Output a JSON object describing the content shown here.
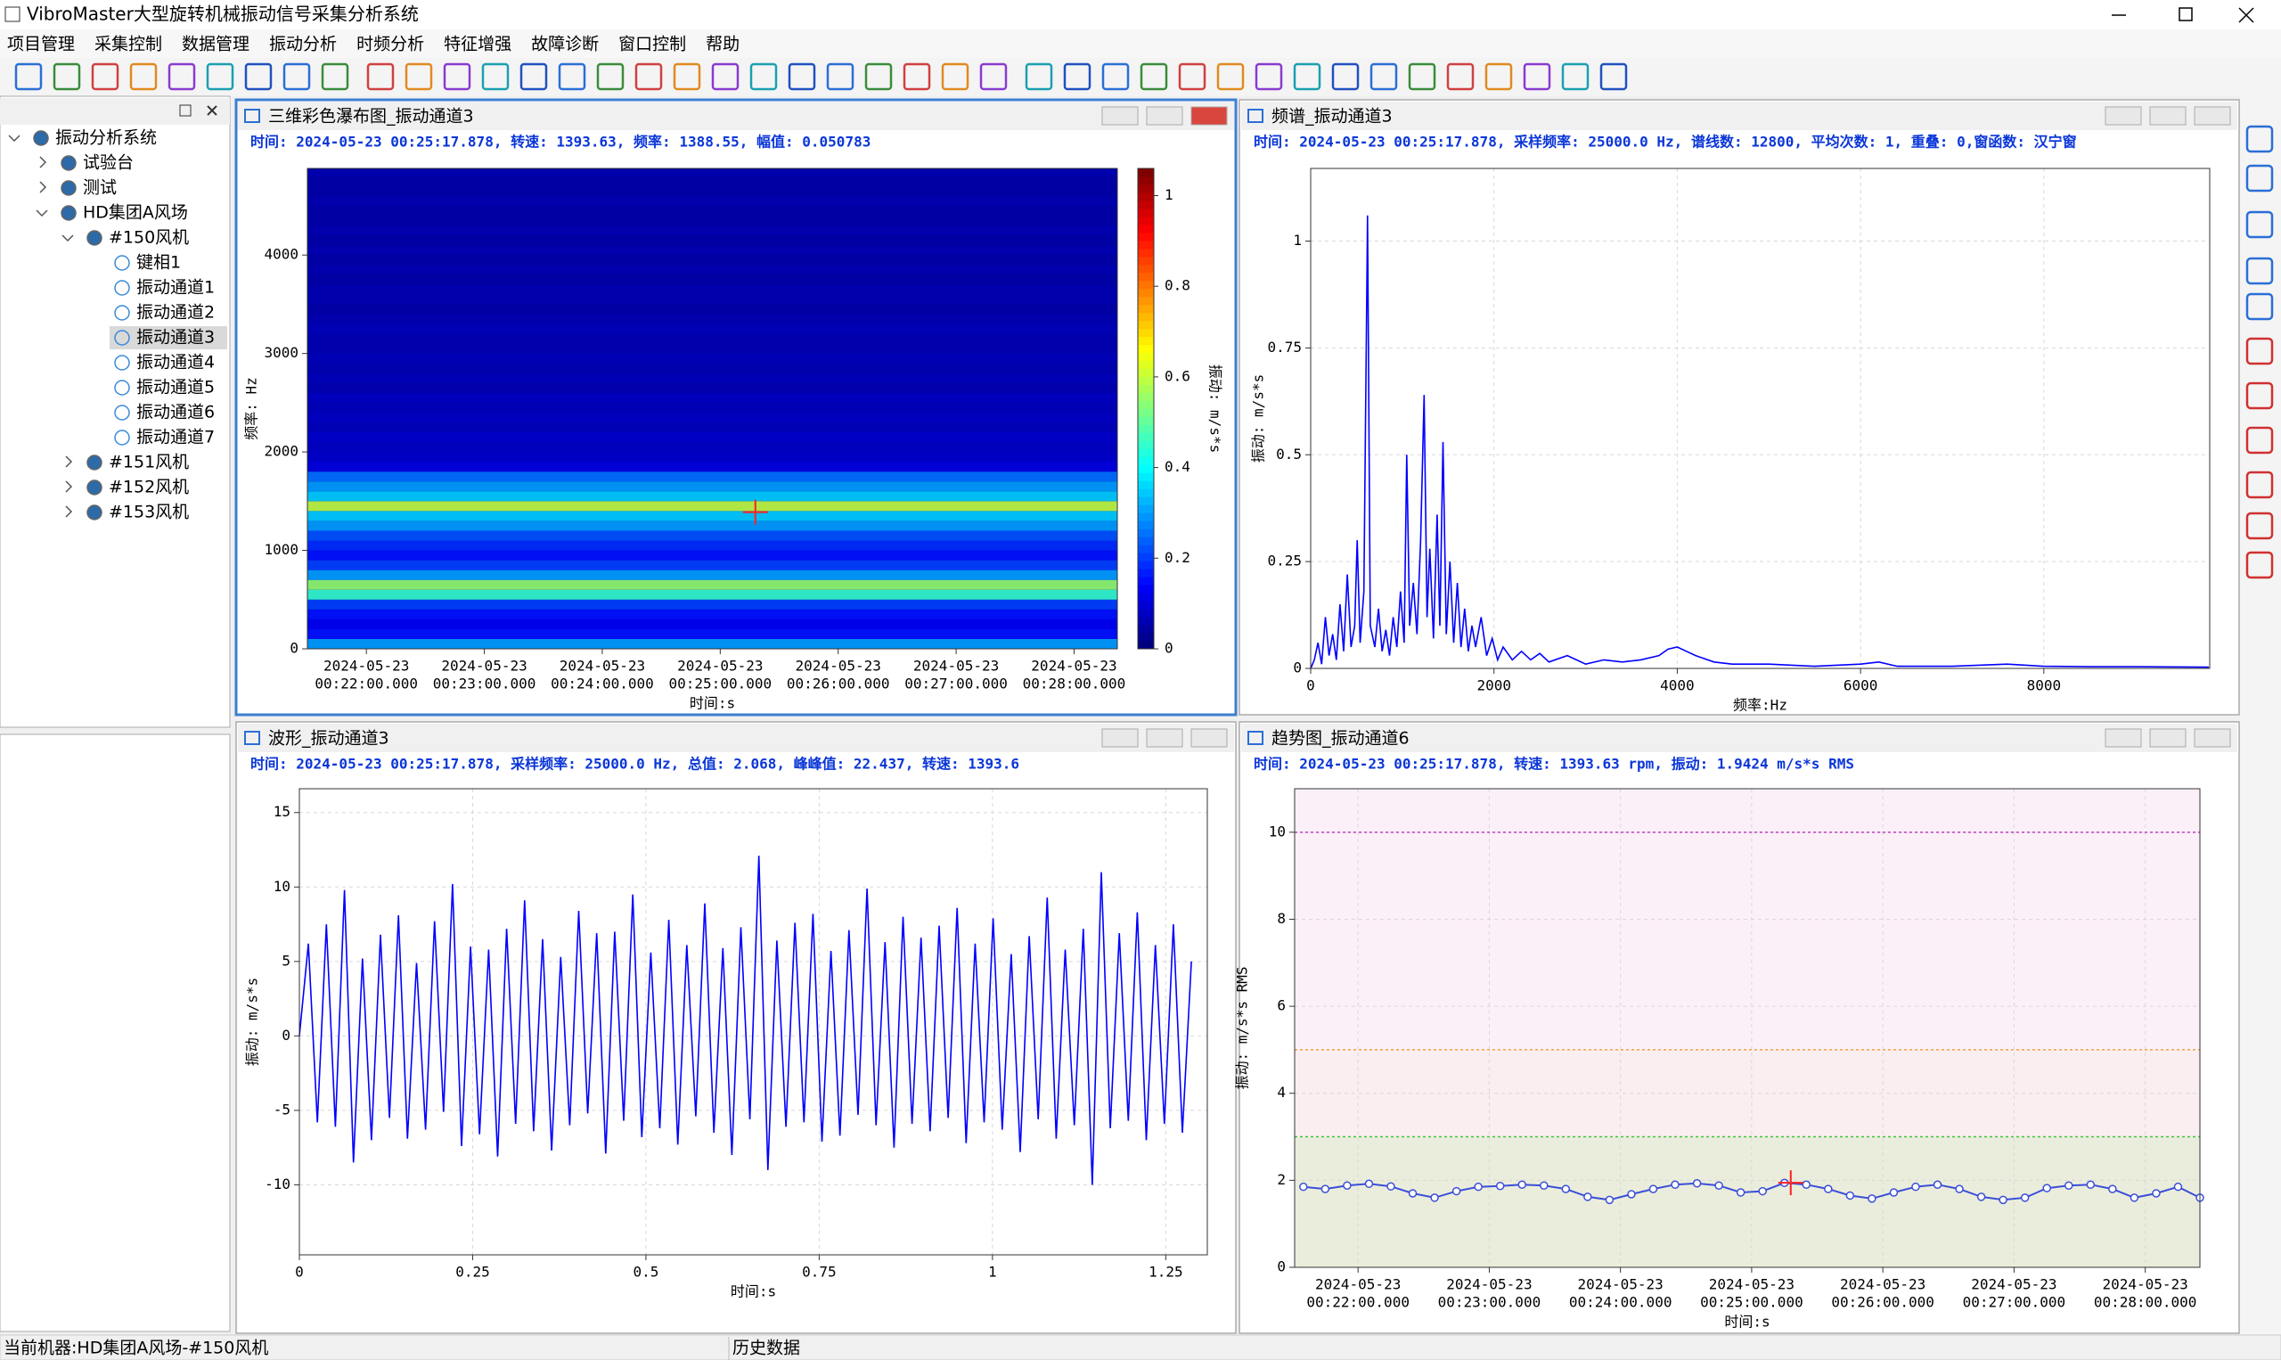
{
  "window_title": "VibroMaster大型旋转机械振动信号采集分析系统",
  "menu": [
    "项目管理",
    "采集控制",
    "数据管理",
    "振动分析",
    "时频分析",
    "特征增强",
    "故障诊断",
    "窗口控制",
    "帮助"
  ],
  "tree": [
    {
      "label": "振动分析系统",
      "level": 0,
      "expanded": true
    },
    {
      "label": "试验台",
      "level": 1,
      "expanded": false
    },
    {
      "label": "测试",
      "level": 1,
      "expanded": false
    },
    {
      "label": "HD集团A风场",
      "level": 1,
      "expanded": true
    },
    {
      "label": "#150风机",
      "level": 2,
      "expanded": true
    },
    {
      "label": "键相1",
      "level": 3
    },
    {
      "label": "振动通道1",
      "level": 3
    },
    {
      "label": "振动通道2",
      "level": 3
    },
    {
      "label": "振动通道3",
      "level": 3,
      "selected": true
    },
    {
      "label": "振动通道4",
      "level": 3
    },
    {
      "label": "振动通道5",
      "level": 3
    },
    {
      "label": "振动通道6",
      "level": 3
    },
    {
      "label": "振动通道7",
      "level": 3
    },
    {
      "label": "#151风机",
      "level": 2,
      "expanded": false
    },
    {
      "label": "#152风机",
      "level": 2,
      "expanded": false
    },
    {
      "label": "#153风机",
      "level": 2,
      "expanded": false
    }
  ],
  "status_bar": [
    "当前机器:HD集团A风场-#150风机",
    "历史数据"
  ],
  "chart_data": [
    {
      "type": "heatmap",
      "title": "三维彩色瀑布图_振动通道3",
      "subtitle": "时间: 2024-05-23 00:25:17.878, 转速: 1393.63, 频率: 1388.55, 幅值: 0.050783",
      "ylabel": "频率: Hz",
      "xlabel": "时间:s",
      "colorbar_label": "振动: m/s*s",
      "colormap": "jet",
      "xlim": [
        "2024-05-23T00:21:30",
        "2024-05-23T00:28:22"
      ],
      "xticks": [
        {
          "value": "2024-05-23T00:22:00",
          "label": [
            "2024-05-23",
            "00:22:00.000"
          ]
        },
        {
          "value": "2024-05-23T00:23:00",
          "label": [
            "2024-05-23",
            "00:23:00.000"
          ]
        },
        {
          "value": "2024-05-23T00:24:00",
          "label": [
            "2024-05-23",
            "00:24:00.000"
          ]
        },
        {
          "value": "2024-05-23T00:25:00",
          "label": [
            "2024-05-23",
            "00:25:00.000"
          ]
        },
        {
          "value": "2024-05-23T00:26:00",
          "label": [
            "2024-05-23",
            "00:26:00.000"
          ]
        },
        {
          "value": "2024-05-23T00:27:00",
          "label": [
            "2024-05-23",
            "00:27:00.000"
          ]
        },
        {
          "value": "2024-05-23T00:28:00",
          "label": [
            "2024-05-23",
            "00:28:00.000"
          ]
        }
      ],
      "ylim": [
        0,
        4880
      ],
      "yticks": [
        0,
        1000,
        2000,
        3000,
        4000
      ],
      "clim": [
        0,
        1.06
      ],
      "cticks": [
        0,
        0.2,
        0.4,
        0.6,
        0.8,
        1
      ],
      "rows": [
        0,
        100,
        200,
        300,
        400,
        500,
        600,
        700,
        800,
        900,
        1000,
        1100,
        1200,
        1300,
        1400,
        1500,
        1600,
        1700,
        1800,
        1900,
        2000,
        2100,
        2200,
        2300,
        2400,
        2500,
        2600,
        2700,
        2800,
        2900,
        3000,
        3100,
        3200,
        3300,
        3400,
        3500,
        3600,
        3700,
        3800,
        3900,
        4000,
        4100,
        4200,
        4300,
        4400,
        4500,
        4600,
        4700,
        4800
      ],
      "values": [
        0.3,
        0.15,
        0.12,
        0.15,
        0.2,
        0.45,
        0.55,
        0.3,
        0.2,
        0.15,
        0.18,
        0.22,
        0.3,
        0.35,
        0.6,
        0.35,
        0.3,
        0.25,
        0.1,
        0.08,
        0.07,
        0.08,
        0.06,
        0.07,
        0.06,
        0.07,
        0.05,
        0.06,
        0.05,
        0.06,
        0.05,
        0.05,
        0.06,
        0.05,
        0.04,
        0.05,
        0.05,
        0.04,
        0.05,
        0.04,
        0.05,
        0.04,
        0.05,
        0.04,
        0.04,
        0.05,
        0.04,
        0.04,
        0.05
      ],
      "cursor": {
        "x": "2024-05-23T00:25:17.878",
        "y": 1388.55,
        "color": "#ff2020"
      },
      "active": true
    },
    {
      "type": "line",
      "title": "频谱_振动通道3",
      "subtitle": "时间: 2024-05-23 00:25:17.878, 采样频率: 25000.0 Hz, 谱线数: 12800, 平均次数: 1, 重叠: 0,窗函数: 汉宁窗",
      "ylabel": "振动: m/s*s",
      "xlabel": "频率:Hz",
      "xlim": [
        0,
        9810
      ],
      "xticks": [
        0,
        2000,
        4000,
        6000,
        8000
      ],
      "ylim": [
        0,
        1.17
      ],
      "yticks": [
        0,
        0.25,
        0.5,
        0.75,
        1
      ],
      "grid": true,
      "series": [
        {
          "color": "#0000ff",
          "x": [
            0,
            40,
            80,
            120,
            160,
            200,
            240,
            280,
            320,
            360,
            400,
            440,
            480,
            508,
            540,
            580,
            620,
            650,
            700,
            740,
            780,
            820,
            860,
            900,
            940,
            980,
            1020,
            1048,
            1080,
            1120,
            1160,
            1200,
            1238,
            1270,
            1300,
            1340,
            1380,
            1410,
            1444,
            1480,
            1520,
            1560,
            1600,
            1640,
            1680,
            1720,
            1760,
            1800,
            1860,
            1920,
            1980,
            2040,
            2100,
            2200,
            2300,
            2400,
            2500,
            2600,
            2800,
            3000,
            3200,
            3400,
            3600,
            3800,
            3900,
            4000,
            4100,
            4200,
            4400,
            4600,
            5000,
            5500,
            6000,
            6200,
            6400,
            7000,
            7600,
            8000,
            8500,
            9000,
            9800
          ],
          "values": [
            0,
            0.02,
            0.06,
            0.01,
            0.12,
            0.03,
            0.08,
            0.02,
            0.15,
            0.04,
            0.22,
            0.05,
            0.1,
            0.3,
            0.06,
            0.18,
            1.06,
            0.1,
            0.05,
            0.14,
            0.04,
            0.09,
            0.03,
            0.12,
            0.05,
            0.18,
            0.06,
            0.5,
            0.1,
            0.2,
            0.08,
            0.3,
            0.64,
            0.12,
            0.28,
            0.07,
            0.36,
            0.1,
            0.53,
            0.08,
            0.25,
            0.06,
            0.2,
            0.05,
            0.14,
            0.04,
            0.1,
            0.05,
            0.12,
            0.03,
            0.07,
            0.02,
            0.05,
            0.02,
            0.04,
            0.02,
            0.035,
            0.015,
            0.03,
            0.01,
            0.02,
            0.015,
            0.02,
            0.03,
            0.045,
            0.05,
            0.04,
            0.03,
            0.015,
            0.01,
            0.01,
            0.005,
            0.01,
            0.015,
            0.005,
            0.005,
            0.01,
            0.005,
            0.004,
            0.004,
            0.003
          ]
        }
      ]
    },
    {
      "type": "line",
      "title": "波形_振动通道3",
      "subtitle": "时间: 2024-05-23 00:25:17.878, 采样频率: 25000.0 Hz, 总值: 2.068, 峰峰值: 22.437, 转速: 1393.6",
      "ylabel": "振动: m/s*s",
      "xlabel": "时间:s",
      "xlim": [
        0,
        1.31
      ],
      "xticks": [
        0,
        0.25,
        0.5,
        0.75,
        1,
        1.25
      ],
      "ylim": [
        -14.7,
        16.6
      ],
      "yticks": [
        -10,
        -5,
        0,
        5,
        10,
        15
      ],
      "grid": true,
      "series": [
        {
          "color": "#0000ff",
          "x": [
            0,
            0.013,
            0.026,
            0.039,
            0.052,
            0.065,
            0.078,
            0.091,
            0.104,
            0.117,
            0.13,
            0.143,
            0.156,
            0.169,
            0.182,
            0.195,
            0.208,
            0.221,
            0.234,
            0.247,
            0.26,
            0.273,
            0.286,
            0.299,
            0.312,
            0.325,
            0.338,
            0.351,
            0.364,
            0.377,
            0.39,
            0.403,
            0.416,
            0.429,
            0.442,
            0.455,
            0.468,
            0.481,
            0.494,
            0.507,
            0.52,
            0.533,
            0.546,
            0.559,
            0.572,
            0.585,
            0.598,
            0.611,
            0.624,
            0.637,
            0.65,
            0.663,
            0.676,
            0.689,
            0.702,
            0.715,
            0.728,
            0.741,
            0.754,
            0.767,
            0.78,
            0.793,
            0.806,
            0.819,
            0.832,
            0.845,
            0.858,
            0.871,
            0.884,
            0.897,
            0.91,
            0.923,
            0.936,
            0.949,
            0.962,
            0.975,
            0.988,
            1.001,
            1.014,
            1.027,
            1.04,
            1.053,
            1.066,
            1.079,
            1.092,
            1.105,
            1.118,
            1.131,
            1.144,
            1.157,
            1.17,
            1.183,
            1.196,
            1.209,
            1.222,
            1.235,
            1.248,
            1.261,
            1.274,
            1.287
          ],
          "values": [
            0,
            6.2,
            -5.8,
            7.5,
            -6.1,
            9.8,
            -8.5,
            5.2,
            -7.0,
            6.8,
            -5.5,
            8.1,
            -6.9,
            4.9,
            -6.3,
            7.7,
            -5.1,
            10.2,
            -7.4,
            6.0,
            -6.6,
            5.8,
            -8.1,
            7.2,
            -5.9,
            9.1,
            -6.4,
            6.5,
            -7.7,
            5.3,
            -6.0,
            8.4,
            -5.2,
            6.9,
            -7.9,
            7.0,
            -5.7,
            9.5,
            -6.8,
            5.6,
            -6.2,
            7.8,
            -7.3,
            6.1,
            -5.4,
            8.9,
            -6.5,
            5.9,
            -8.0,
            7.3,
            -5.6,
            12.1,
            -9.0,
            6.4,
            -6.1,
            7.6,
            -5.8,
            8.2,
            -7.1,
            5.7,
            -6.7,
            7.1,
            -5.3,
            9.9,
            -6.0,
            6.3,
            -7.5,
            8.0,
            -5.9,
            6.6,
            -6.4,
            7.4,
            -5.5,
            8.6,
            -7.2,
            6.2,
            -5.8,
            7.9,
            -6.3,
            5.5,
            -7.8,
            6.7,
            -5.6,
            9.3,
            -6.9,
            5.8,
            -6.0,
            7.2,
            -10.0,
            11.0,
            -6.2,
            6.9,
            -5.7,
            8.3,
            -7.0,
            6.1,
            -5.9,
            7.5,
            -6.5,
            5.0
          ]
        }
      ]
    },
    {
      "type": "trend",
      "title": "趋势图_振动通道6",
      "subtitle": "时间: 2024-05-23 00:25:17.878, 转速: 1393.63 rpm, 振动: 1.9424 m/s*s RMS",
      "ylabel": "振动: m/s*s RMS",
      "xlabel": "时间:s",
      "xlim": [
        "2024-05-23T00:21:31",
        "2024-05-23T00:28:25"
      ],
      "xticks": [
        {
          "value": "2024-05-23T00:22:00",
          "label": [
            "2024-05-23",
            "00:22:00.000"
          ]
        },
        {
          "value": "2024-05-23T00:23:00",
          "label": [
            "2024-05-23",
            "00:23:00.000"
          ]
        },
        {
          "value": "2024-05-23T00:24:00",
          "label": [
            "2024-05-23",
            "00:24:00.000"
          ]
        },
        {
          "value": "2024-05-23T00:25:00",
          "label": [
            "2024-05-23",
            "00:25:00.000"
          ]
        },
        {
          "value": "2024-05-23T00:26:00",
          "label": [
            "2024-05-23",
            "00:26:00.000"
          ]
        },
        {
          "value": "2024-05-23T00:27:00",
          "label": [
            "2024-05-23",
            "00:27:00.000"
          ]
        },
        {
          "value": "2024-05-23T00:28:00",
          "label": [
            "2024-05-23",
            "00:28:00.000"
          ]
        }
      ],
      "ylim": [
        0,
        11
      ],
      "yticks": [
        0,
        2,
        4,
        6,
        8,
        10
      ],
      "grid": true,
      "thresholds": [
        {
          "value": 3,
          "color": "#3cc43c",
          "fill": "#ebeddc"
        },
        {
          "value": 5,
          "color": "#f0a040",
          "fill": "#fbeef0"
        },
        {
          "value": 10,
          "color": "#c040c0",
          "fill": "#fcf0f8"
        }
      ],
      "series": [
        {
          "color": "#3b4fd8",
          "x": [
            "2024-05-23T00:21:35",
            "2024-05-23T00:21:45",
            "2024-05-23T00:21:55",
            "2024-05-23T00:22:05",
            "2024-05-23T00:22:15",
            "2024-05-23T00:22:25",
            "2024-05-23T00:22:35",
            "2024-05-23T00:22:45",
            "2024-05-23T00:22:55",
            "2024-05-23T00:23:05",
            "2024-05-23T00:23:15",
            "2024-05-23T00:23:25",
            "2024-05-23T00:23:35",
            "2024-05-23T00:23:45",
            "2024-05-23T00:23:55",
            "2024-05-23T00:24:05",
            "2024-05-23T00:24:15",
            "2024-05-23T00:24:25",
            "2024-05-23T00:24:35",
            "2024-05-23T00:24:45",
            "2024-05-23T00:24:55",
            "2024-05-23T00:25:05",
            "2024-05-23T00:25:15",
            "2024-05-23T00:25:25",
            "2024-05-23T00:25:35",
            "2024-05-23T00:25:45",
            "2024-05-23T00:25:55",
            "2024-05-23T00:26:05",
            "2024-05-23T00:26:15",
            "2024-05-23T00:26:25",
            "2024-05-23T00:26:35",
            "2024-05-23T00:26:45",
            "2024-05-23T00:26:55",
            "2024-05-23T00:27:05",
            "2024-05-23T00:27:15",
            "2024-05-23T00:27:25",
            "2024-05-23T00:27:35",
            "2024-05-23T00:27:45",
            "2024-05-23T00:27:55",
            "2024-05-23T00:28:05",
            "2024-05-23T00:28:15",
            "2024-05-23T00:28:25"
          ],
          "values": [
            1.85,
            1.8,
            1.88,
            1.92,
            1.86,
            1.7,
            1.6,
            1.75,
            1.85,
            1.87,
            1.9,
            1.88,
            1.8,
            1.62,
            1.55,
            1.68,
            1.8,
            1.9,
            1.93,
            1.88,
            1.72,
            1.75,
            1.94,
            1.9,
            1.8,
            1.65,
            1.58,
            1.72,
            1.85,
            1.9,
            1.8,
            1.62,
            1.55,
            1.6,
            1.82,
            1.88,
            1.9,
            1.8,
            1.6,
            1.7,
            1.85,
            1.6
          ]
        }
      ],
      "cursor": {
        "x": "2024-05-23T00:25:17.878",
        "y": 1.9424,
        "color": "#ff2020"
      }
    }
  ]
}
